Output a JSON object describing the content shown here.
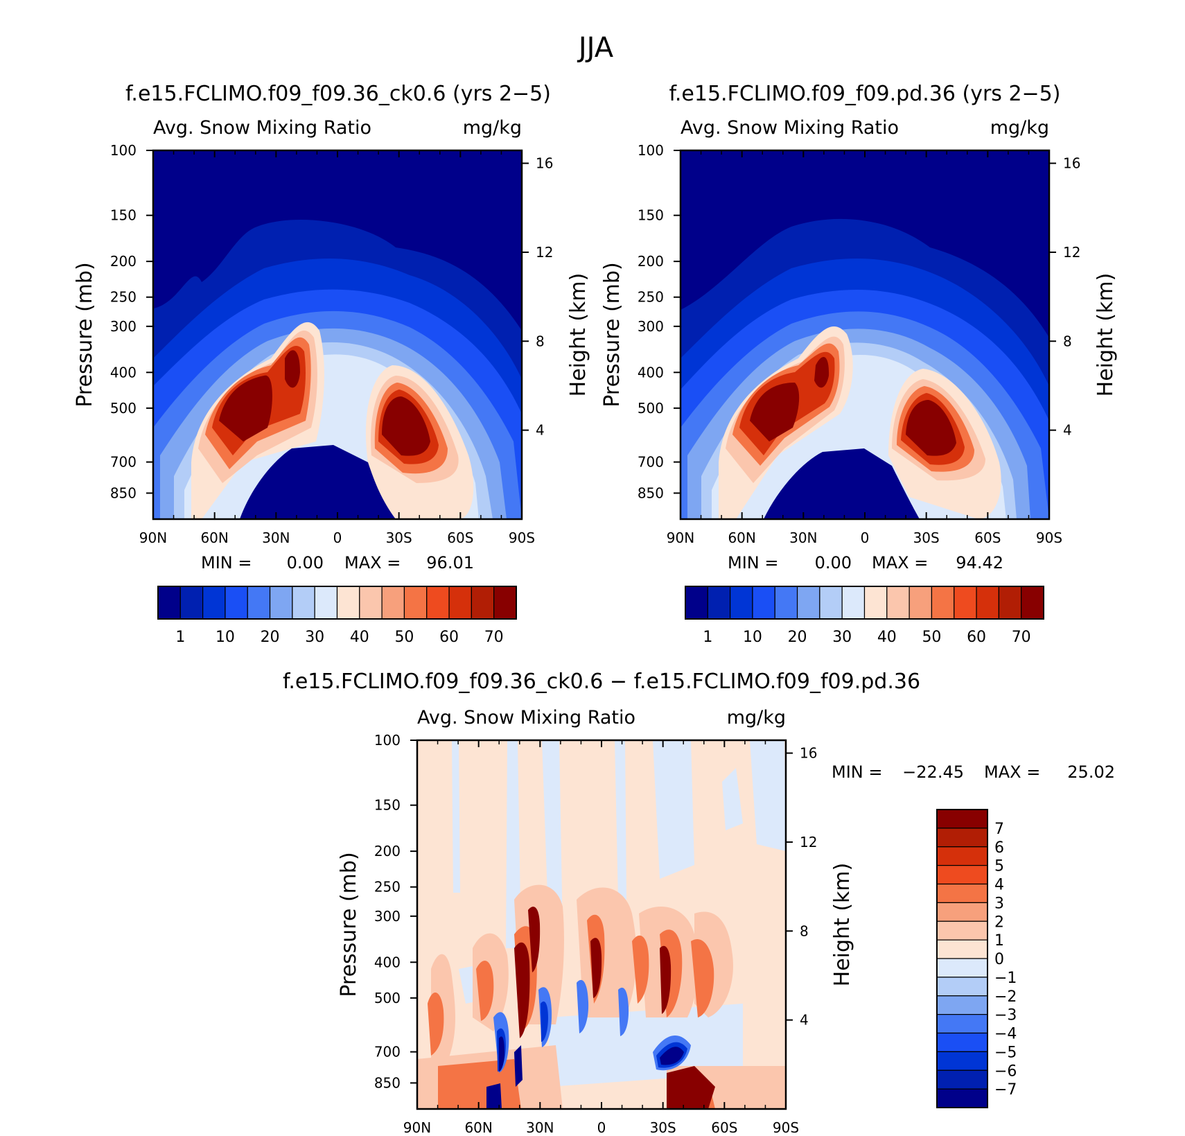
{
  "figure": {
    "title": "JJA"
  },
  "chart_data": [
    {
      "type": "heatmap",
      "title": "f.e15.FCLIMO.f09_f09.36_ck0.6 (yrs 2−5)",
      "subtitle_left": "Avg. Snow Mixing Ratio",
      "subtitle_right": "mg/kg",
      "xlabel": "",
      "ylabel": "Pressure (mb)",
      "ylabel_right": "Height (km)",
      "x_ticks": [
        "90N",
        "60N",
        "30N",
        "0",
        "30S",
        "60S",
        "90S"
      ],
      "y_ticks": [
        "100",
        "150",
        "200",
        "250",
        "300",
        "400",
        "500",
        "700",
        "850"
      ],
      "y_right_ticks": [
        "16",
        "12",
        "8",
        "4"
      ],
      "min_label": "MIN =",
      "min_value": "0.00",
      "max_label": "MAX =",
      "max_value": "96.01",
      "colorbar_labels": [
        "1",
        "10",
        "20",
        "30",
        "40",
        "50",
        "60",
        "70"
      ],
      "colorbar_colors": [
        "#00008a",
        "#0020b0",
        "#0035d5",
        "#1a4ff5",
        "#4478f5",
        "#7ea6f2",
        "#b3cdf7",
        "#dce9fb",
        "#fde4d3",
        "#fbc6ad",
        "#f7a07c",
        "#f47445",
        "#ee4b1f",
        "#d5300b",
        "#b11e05",
        "#880000"
      ]
    },
    {
      "type": "heatmap",
      "title": "f.e15.FCLIMO.f09_f09.pd.36 (yrs 2−5)",
      "subtitle_left": "Avg. Snow Mixing Ratio",
      "subtitle_right": "mg/kg",
      "xlabel": "",
      "ylabel": "Pressure (mb)",
      "ylabel_right": "Height (km)",
      "x_ticks": [
        "90N",
        "60N",
        "30N",
        "0",
        "30S",
        "60S",
        "90S"
      ],
      "y_ticks": [
        "100",
        "150",
        "200",
        "250",
        "300",
        "400",
        "500",
        "700",
        "850"
      ],
      "y_right_ticks": [
        "16",
        "12",
        "8",
        "4"
      ],
      "min_label": "MIN =",
      "min_value": "0.00",
      "max_label": "MAX =",
      "max_value": "94.42",
      "colorbar_labels": [
        "1",
        "10",
        "20",
        "30",
        "40",
        "50",
        "60",
        "70"
      ],
      "colorbar_colors": [
        "#00008a",
        "#0020b0",
        "#0035d5",
        "#1a4ff5",
        "#4478f5",
        "#7ea6f2",
        "#b3cdf7",
        "#dce9fb",
        "#fde4d3",
        "#fbc6ad",
        "#f7a07c",
        "#f47445",
        "#ee4b1f",
        "#d5300b",
        "#b11e05",
        "#880000"
      ]
    },
    {
      "type": "heatmap",
      "title": "f.e15.FCLIMO.f09_f09.36_ck0.6 − f.e15.FCLIMO.f09_f09.pd.36",
      "subtitle_left": "Avg. Snow Mixing Ratio",
      "subtitle_right": "mg/kg",
      "xlabel": "",
      "ylabel": "Pressure (mb)",
      "ylabel_right": "Height (km)",
      "x_ticks": [
        "90N",
        "60N",
        "30N",
        "0",
        "30S",
        "60S",
        "90S"
      ],
      "y_ticks": [
        "100",
        "150",
        "200",
        "250",
        "300",
        "400",
        "500",
        "700",
        "850"
      ],
      "y_right_ticks": [
        "16",
        "12",
        "8",
        "4"
      ],
      "min_label": "MIN =",
      "min_value": "−22.45",
      "max_label": "MAX =",
      "max_value": "25.02",
      "colorbar_labels": [
        "7",
        "6",
        "5",
        "4",
        "3",
        "2",
        "1",
        "0",
        "−1",
        "−2",
        "−3",
        "−4",
        "−5",
        "−6",
        "−7"
      ],
      "colorbar_colors": [
        "#880000",
        "#b11e05",
        "#d5300b",
        "#ee4b1f",
        "#f47445",
        "#f7a07c",
        "#fbc6ad",
        "#fde4d3",
        "#dce9fb",
        "#b3cdf7",
        "#7ea6f2",
        "#4478f5",
        "#1a4ff5",
        "#0035d5",
        "#0020b0",
        "#00008a"
      ]
    }
  ]
}
